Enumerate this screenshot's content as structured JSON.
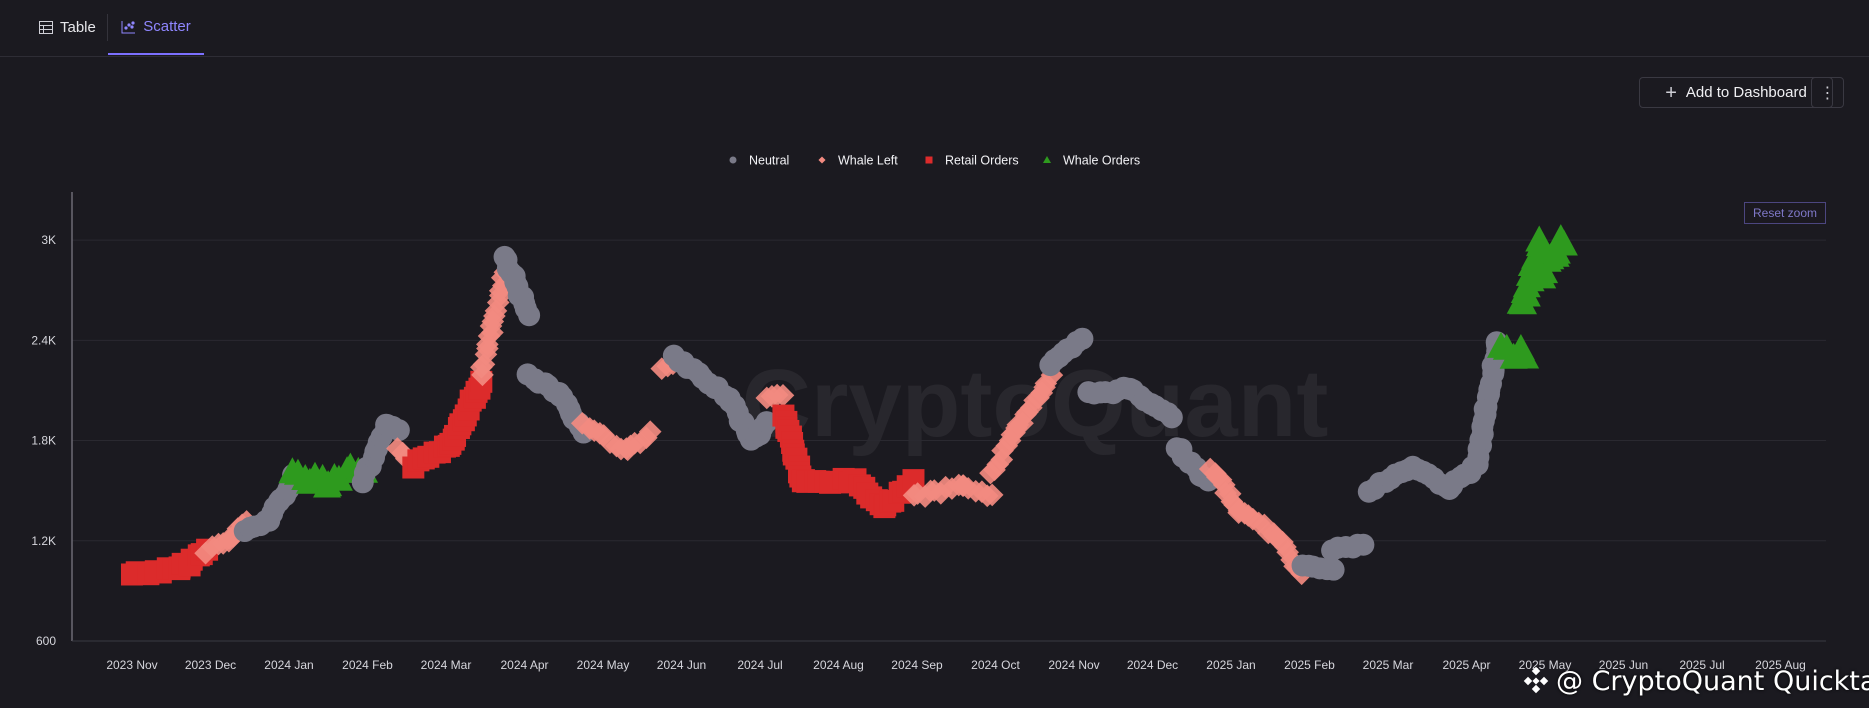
{
  "tabs": [
    {
      "label": "Table",
      "icon": "table-icon"
    },
    {
      "label": "Scatter",
      "icon": "scatter-chart-icon",
      "active": true
    }
  ],
  "actions": {
    "add_dashboard": "Add to Dashboard",
    "more_icon": "more-vertical-icon"
  },
  "reset_zoom": "Reset zoom",
  "watermark": "CryptoQuant",
  "credit": "@ CryptoQuant Quicktak...",
  "chart_data": {
    "type": "scatter",
    "legend_position": "top-center",
    "series": [
      {
        "name": "Neutral",
        "marker": "circle",
        "color": "#7a7a88"
      },
      {
        "name": "Whale Left",
        "marker": "diamond",
        "color": "#f28a80"
      },
      {
        "name": "Retail Orders",
        "marker": "square",
        "color": "#dc2b2b"
      },
      {
        "name": "Whale Orders",
        "marker": "triangle",
        "color": "#2e9a1e"
      }
    ],
    "x_ticks": [
      "2023 Nov",
      "2023 Dec",
      "2024 Jan",
      "2024 Feb",
      "2024 Mar",
      "2024 Apr",
      "2024 May",
      "2024 Jun",
      "2024 Jul",
      "2024 Aug",
      "2024 Sep",
      "2024 Oct",
      "2024 Nov",
      "2024 Dec",
      "2025 Jan",
      "2025 Feb",
      "2025 Mar",
      "2025 Apr",
      "2025 May",
      "2025 Jun",
      "2025 Jul",
      "2025 Aug"
    ],
    "y_ticks": [
      "600",
      "1.2K",
      "1.8K",
      "2.4K",
      "3K"
    ],
    "ylim": [
      600,
      3300
    ],
    "grid": "horizontal",
    "segments": [
      [
        "Retail Orders",
        0,
        1000,
        0.6,
        1030
      ],
      [
        "Retail Orders",
        0.6,
        1030,
        0.95,
        1140
      ],
      [
        "Whale Left",
        0.95,
        1140,
        1.25,
        1210
      ],
      [
        "Whale Left",
        1.25,
        1210,
        1.45,
        1320
      ],
      [
        "Neutral",
        1.45,
        1250,
        1.75,
        1330
      ],
      [
        "Neutral",
        1.75,
        1330,
        2.05,
        1580
      ],
      [
        "Whale Orders",
        2.05,
        1600,
        2.5,
        1560
      ],
      [
        "Whale Orders",
        2.5,
        1560,
        2.95,
        1640
      ],
      [
        "Neutral",
        2.95,
        1560,
        3.25,
        1880
      ],
      [
        "Neutral",
        3.25,
        1880,
        3.4,
        1860
      ],
      [
        "Whale Left",
        3.4,
        1760,
        3.6,
        1650
      ],
      [
        "Retail Orders",
        3.6,
        1650,
        4.05,
        1780
      ],
      [
        "Retail Orders",
        4.05,
        1780,
        4.45,
        2150
      ],
      [
        "Whale Left",
        4.45,
        2200,
        4.75,
        2800
      ],
      [
        "Neutral",
        4.75,
        2900,
        5.05,
        2550
      ],
      [
        "Neutral",
        5.05,
        2200,
        5.45,
        2080
      ],
      [
        "Neutral",
        5.45,
        2080,
        5.75,
        1850
      ],
      [
        "Whale Left",
        5.75,
        1900,
        6.3,
        1740
      ],
      [
        "Whale Left",
        6.3,
        1740,
        6.6,
        1840
      ],
      [
        "Whale Left",
        6.75,
        2220,
        6.9,
        2260
      ],
      [
        "Neutral",
        6.9,
        2300,
        7.6,
        2060
      ],
      [
        "Neutral",
        7.6,
        2060,
        7.9,
        1800
      ],
      [
        "Neutral",
        7.9,
        1800,
        8.1,
        1900
      ],
      [
        "Whale Left",
        8.1,
        2050,
        8.3,
        2080
      ],
      [
        "Retail Orders",
        8.3,
        1950,
        8.55,
        1550
      ],
      [
        "Retail Orders",
        8.55,
        1550,
        9.2,
        1560
      ],
      [
        "Retail Orders",
        9.2,
        1560,
        9.6,
        1400
      ],
      [
        "Retail Orders",
        9.6,
        1400,
        9.95,
        1560
      ],
      [
        "Whale Left",
        9.95,
        1460,
        10.6,
        1530
      ],
      [
        "Whale Left",
        10.6,
        1530,
        10.95,
        1460
      ],
      [
        "Whale Left",
        10.95,
        1600,
        11.25,
        1860
      ],
      [
        "Whale Left",
        11.25,
        1860,
        11.7,
        2180
      ],
      [
        "Neutral",
        11.7,
        2250,
        12.1,
        2400
      ],
      [
        "Neutral",
        12.2,
        2080,
        12.7,
        2110
      ],
      [
        "Neutral",
        12.7,
        2110,
        13.25,
        1950
      ],
      [
        "Neutral",
        13.3,
        1760,
        13.7,
        1550
      ],
      [
        "Whale Left",
        13.75,
        1640,
        14.1,
        1380
      ],
      [
        "Whale Left",
        14.1,
        1380,
        14.55,
        1240
      ],
      [
        "Whale Left",
        14.55,
        1240,
        14.9,
        1000
      ],
      [
        "Neutral",
        14.9,
        1060,
        15.3,
        1040
      ],
      [
        "Neutral",
        15.3,
        1150,
        15.7,
        1170
      ],
      [
        "Neutral",
        15.75,
        1500,
        16.3,
        1640
      ],
      [
        "Neutral",
        16.3,
        1640,
        16.8,
        1520
      ],
      [
        "Neutral",
        16.8,
        1520,
        17.15,
        1660
      ],
      [
        "Neutral",
        17.15,
        1700,
        17.4,
        2400
      ],
      [
        "Whale Orders",
        17.45,
        2350,
        17.75,
        2300
      ],
      [
        "Whale Orders",
        17.7,
        2600,
        17.95,
        3000
      ],
      [
        "Whale Orders",
        17.95,
        2800,
        18.25,
        3000
      ]
    ]
  }
}
